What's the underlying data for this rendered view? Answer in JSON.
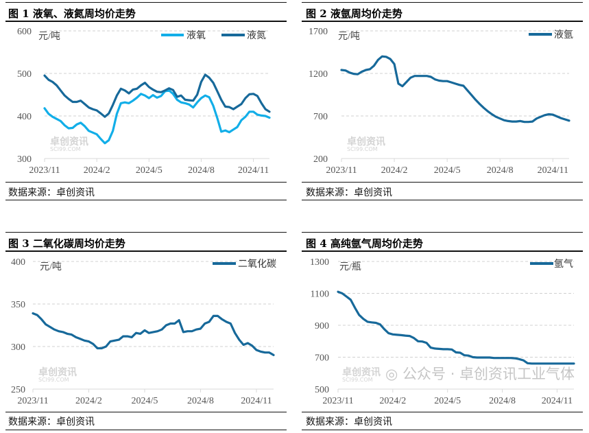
{
  "colors": {
    "lox": "#12aee8",
    "dark": "#17699a",
    "grid": "#d0d0d0",
    "axis_text": "#555555"
  },
  "panels": [
    {
      "title": "图 1  液氧、液氮周均价走势",
      "source": "数据来源：卓创资讯"
    },
    {
      "title": "图 2  液氩周均价走势",
      "source": "数据来源：卓创资讯"
    },
    {
      "title": "图 3  二氧化碳周均价走势",
      "source": "数据来源：卓创资讯"
    },
    {
      "title": "图 4  高纯氩气周均价走势",
      "source": "数据来源：卓创资讯"
    }
  ],
  "watermark": {
    "name": "卓创资讯",
    "site": "SCI99.COM"
  },
  "wechat_overlay": "公众号 · 卓创资讯工业气体",
  "chart_data": [
    {
      "type": "line",
      "title": "液氧、液氮周均价走势",
      "unit": "元/吨",
      "ylim": [
        300,
        600
      ],
      "yticks": [
        300,
        400,
        500,
        600
      ],
      "x_tick_labels": [
        "2023/11",
        "2024/2",
        "2024/5",
        "2024/8",
        "2024/11"
      ],
      "x_tick_index": [
        0,
        13,
        26,
        39,
        52
      ],
      "legend_position": "top-right",
      "series": [
        {
          "name": "液氧",
          "color": "#12aee8",
          "values": [
            418,
            405,
            398,
            393,
            388,
            378,
            371,
            372,
            380,
            384,
            376,
            365,
            361,
            357,
            346,
            336,
            343,
            365,
            405,
            430,
            432,
            430,
            436,
            443,
            452,
            448,
            442,
            449,
            443,
            447,
            458,
            460,
            452,
            438,
            432,
            430,
            427,
            420,
            432,
            442,
            448,
            444,
            424,
            395,
            363,
            366,
            362,
            368,
            374,
            390,
            398,
            410,
            410,
            403,
            401,
            400,
            396
          ]
        },
        {
          "name": "液氮",
          "color": "#17699a",
          "values": [
            495,
            485,
            480,
            472,
            460,
            448,
            440,
            433,
            433,
            436,
            428,
            420,
            416,
            413,
            406,
            398,
            406,
            426,
            448,
            464,
            460,
            453,
            462,
            464,
            472,
            478,
            468,
            462,
            457,
            456,
            460,
            465,
            461,
            445,
            448,
            438,
            437,
            436,
            450,
            480,
            497,
            490,
            478,
            458,
            438,
            422,
            421,
            416,
            422,
            428,
            442,
            451,
            452,
            447,
            430,
            416,
            410
          ]
        }
      ]
    },
    {
      "type": "line",
      "title": "液氩周均价走势",
      "unit": "元/吨",
      "ylim": [
        200,
        1700
      ],
      "yticks": [
        200,
        700,
        1200,
        1700
      ],
      "x_tick_labels": [
        "2023/11",
        "2024/2",
        "2024/5",
        "2024/8",
        "2024/11"
      ],
      "x_tick_index": [
        0,
        13,
        26,
        39,
        52
      ],
      "legend_position": "top-right",
      "series": [
        {
          "name": "液氩",
          "color": "#17699a",
          "values": [
            1240,
            1235,
            1210,
            1195,
            1190,
            1220,
            1240,
            1250,
            1290,
            1360,
            1400,
            1395,
            1370,
            1310,
            1080,
            1050,
            1100,
            1150,
            1170,
            1170,
            1170,
            1170,
            1160,
            1130,
            1115,
            1110,
            1110,
            1095,
            1080,
            1065,
            1055,
            1000,
            945,
            890,
            840,
            795,
            755,
            720,
            690,
            670,
            650,
            640,
            635,
            635,
            640,
            630,
            630,
            635,
            670,
            690,
            710,
            720,
            715,
            695,
            675,
            660,
            645
          ]
        }
      ]
    },
    {
      "type": "line",
      "title": "二氧化碳周均价走势",
      "unit": "元/吨",
      "ylim": [
        250,
        400
      ],
      "yticks": [
        250,
        300,
        350,
        400
      ],
      "x_tick_labels": [
        "2023/11",
        "2024/2",
        "2024/5",
        "2024/8",
        "2024/11"
      ],
      "x_tick_index": [
        0,
        13,
        26,
        39,
        52
      ],
      "legend_position": "top-right",
      "series": [
        {
          "name": "二氧化碳",
          "color": "#17699a",
          "values": [
            339,
            337,
            332,
            326,
            323,
            320,
            318,
            317,
            315,
            314,
            311,
            309,
            307,
            306,
            303,
            298,
            298,
            300,
            306,
            307,
            308,
            312,
            312,
            311,
            316,
            315,
            319,
            316,
            317,
            318,
            320,
            325,
            327,
            327,
            331,
            317,
            318,
            318,
            320,
            321,
            327,
            329,
            336,
            336,
            332,
            329,
            327,
            316,
            308,
            302,
            304,
            301,
            296,
            294,
            293,
            293,
            290
          ]
        }
      ]
    },
    {
      "type": "line",
      "title": "高纯氩气周均价走势",
      "unit": "元/瓶",
      "ylim": [
        500,
        1300
      ],
      "yticks": [
        500,
        700,
        900,
        1100,
        1300
      ],
      "x_tick_labels": [
        "2023/11",
        "2024/2",
        "2024/5",
        "2024/8",
        "2024/11"
      ],
      "x_tick_index": [
        0,
        13,
        26,
        39,
        52
      ],
      "legend_position": "top-right",
      "series": [
        {
          "name": "氩气",
          "color": "#17699a",
          "values": [
            1110,
            1100,
            1080,
            1060,
            1010,
            965,
            940,
            922,
            918,
            915,
            905,
            875,
            850,
            843,
            840,
            838,
            835,
            833,
            820,
            800,
            798,
            790,
            760,
            754,
            752,
            750,
            750,
            748,
            730,
            728,
            712,
            710,
            700,
            698,
            698,
            698,
            698,
            695,
            695,
            695,
            695,
            695,
            693,
            688,
            680,
            662,
            660,
            660,
            660,
            660,
            660,
            660,
            660,
            660,
            660,
            660,
            660
          ]
        }
      ]
    }
  ]
}
